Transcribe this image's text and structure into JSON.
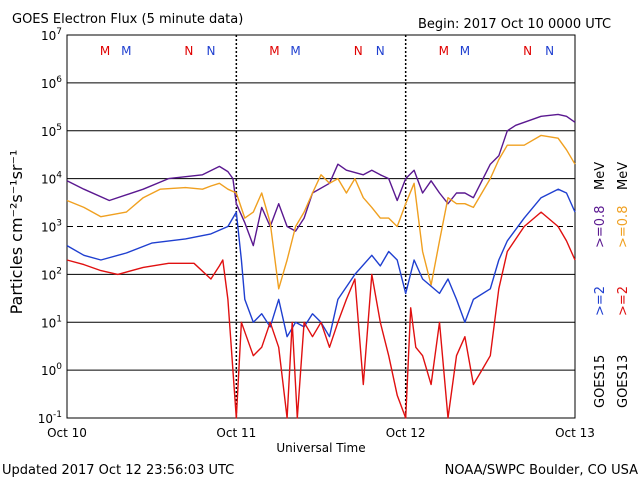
{
  "header": {
    "title": "GOES Electron Flux (5 minute data)",
    "begin": "Begin: 2017 Oct 10 0000 UTC"
  },
  "footer": {
    "updated": "Updated 2017 Oct 12 23:56:03 UTC",
    "credit": "NOAA/SWPC Boulder, CO USA"
  },
  "right_labels": {
    "goes15": "GOES15",
    "goes13": "GOES13",
    "g15_ge2": ">=2",
    "g13_ge2": ">=2",
    "g15_ge08": ">=0.8",
    "g13_ge08": ">=0.8",
    "mev": "MeV"
  },
  "markers": [
    {
      "label": "M",
      "day": 0.225,
      "color": "#e00000"
    },
    {
      "label": "M",
      "day": 0.35,
      "color": "#1f3fd0"
    },
    {
      "label": "N",
      "day": 0.72,
      "color": "#e00000"
    },
    {
      "label": "N",
      "day": 0.85,
      "color": "#1f3fd0"
    },
    {
      "label": "M",
      "day": 1.225,
      "color": "#e00000"
    },
    {
      "label": "M",
      "day": 1.35,
      "color": "#1f3fd0"
    },
    {
      "label": "N",
      "day": 1.72,
      "color": "#e00000"
    },
    {
      "label": "N",
      "day": 1.85,
      "color": "#1f3fd0"
    },
    {
      "label": "M",
      "day": 2.225,
      "color": "#e00000"
    },
    {
      "label": "M",
      "day": 2.35,
      "color": "#1f3fd0"
    },
    {
      "label": "N",
      "day": 2.72,
      "color": "#e00000"
    },
    {
      "label": "N",
      "day": 2.85,
      "color": "#1f3fd0"
    }
  ],
  "chart_data": {
    "type": "line",
    "title": "GOES Electron Flux (5 minute data)",
    "xlabel": "Universal Time",
    "ylabel": "Particles cm⁻²s⁻¹sr⁻¹",
    "x_unit": "days since 2017 Oct 10 0000 UTC",
    "xlim": [
      0,
      3
    ],
    "ylim": [
      0.1,
      10000000
    ],
    "yscale": "log",
    "x_ticks": [
      {
        "value": 0,
        "label": "Oct 10"
      },
      {
        "value": 1,
        "label": "Oct 11"
      },
      {
        "value": 2,
        "label": "Oct 12"
      },
      {
        "value": 3,
        "label": "Oct 13"
      }
    ],
    "y_ticks": [
      {
        "exp": -1,
        "label": "10",
        "sup": "-1"
      },
      {
        "exp": 0,
        "label": "10",
        "sup": "0"
      },
      {
        "exp": 1,
        "label": "10",
        "sup": "1"
      },
      {
        "exp": 2,
        "label": "10",
        "sup": "2"
      },
      {
        "exp": 3,
        "label": "10",
        "sup": "3"
      },
      {
        "exp": 4,
        "label": "10",
        "sup": "4"
      },
      {
        "exp": 5,
        "label": "10",
        "sup": "5"
      },
      {
        "exp": 6,
        "label": "10",
        "sup": "6"
      },
      {
        "exp": 7,
        "label": "10",
        "sup": "7"
      }
    ],
    "grid": true,
    "threshold": 1000,
    "series": [
      {
        "name": "GOES15 >=0.8 MeV",
        "color": "#5a1890",
        "x": [
          0,
          0.1,
          0.25,
          0.45,
          0.6,
          0.8,
          0.9,
          0.95,
          0.98,
          1.0,
          1.05,
          1.1,
          1.15,
          1.2,
          1.25,
          1.3,
          1.35,
          1.4,
          1.45,
          1.55,
          1.6,
          1.65,
          1.75,
          1.8,
          1.85,
          1.9,
          1.95,
          2.0,
          2.05,
          2.1,
          2.15,
          2.2,
          2.25,
          2.3,
          2.35,
          2.4,
          2.5,
          2.55,
          2.6,
          2.65,
          2.7,
          2.8,
          2.9,
          2.95,
          3.0
        ],
        "y": [
          9000,
          6000,
          3500,
          6000,
          10000,
          12000,
          18000,
          14000,
          10000,
          3000,
          1200,
          400,
          2500,
          1000,
          3000,
          1000,
          800,
          1500,
          5000,
          8000,
          20000,
          15000,
          12000,
          15000,
          12000,
          10000,
          3500,
          10000,
          15000,
          5000,
          9000,
          5000,
          3000,
          5000,
          5000,
          4000,
          20000,
          30000,
          100000,
          130000,
          150000,
          200000,
          220000,
          200000,
          150000
        ]
      },
      {
        "name": "GOES13 >=0.8 MeV",
        "color": "#f0a020",
        "x": [
          0,
          0.1,
          0.2,
          0.35,
          0.45,
          0.55,
          0.7,
          0.8,
          0.85,
          0.9,
          0.95,
          1.0,
          1.05,
          1.1,
          1.15,
          1.2,
          1.25,
          1.3,
          1.35,
          1.4,
          1.45,
          1.5,
          1.55,
          1.6,
          1.65,
          1.7,
          1.75,
          1.8,
          1.85,
          1.9,
          1.95,
          2.0,
          2.05,
          2.1,
          2.15,
          2.2,
          2.25,
          2.3,
          2.35,
          2.4,
          2.5,
          2.55,
          2.6,
          2.7,
          2.8,
          2.9,
          2.95,
          3.0
        ],
        "y": [
          3500,
          2500,
          1600,
          2000,
          4000,
          6000,
          6500,
          6000,
          7000,
          8000,
          6000,
          5000,
          1500,
          2000,
          5000,
          1200,
          50,
          200,
          1000,
          2000,
          5000,
          12000,
          8000,
          10000,
          5000,
          10000,
          4000,
          2500,
          1500,
          1500,
          1000,
          3000,
          8000,
          300,
          60,
          500,
          4000,
          3000,
          3000,
          2500,
          10000,
          25000,
          50000,
          50000,
          80000,
          70000,
          40000,
          20000
        ]
      },
      {
        "name": "GOES15 >=2 MeV",
        "color": "#1f3fd0",
        "x": [
          0,
          0.1,
          0.2,
          0.35,
          0.5,
          0.7,
          0.85,
          0.95,
          1.0,
          1.03,
          1.05,
          1.1,
          1.15,
          1.2,
          1.25,
          1.3,
          1.35,
          1.4,
          1.45,
          1.5,
          1.55,
          1.6,
          1.7,
          1.8,
          1.85,
          1.9,
          1.95,
          2.0,
          2.05,
          2.1,
          2.2,
          2.25,
          2.3,
          2.35,
          2.4,
          2.5,
          2.55,
          2.6,
          2.7,
          2.8,
          2.9,
          2.95,
          3.0
        ],
        "y": [
          400,
          250,
          200,
          280,
          450,
          550,
          700,
          1000,
          2000,
          200,
          30,
          10,
          15,
          8,
          30,
          5,
          10,
          8,
          15,
          10,
          5,
          30,
          100,
          250,
          150,
          300,
          200,
          40,
          200,
          80,
          40,
          80,
          30,
          10,
          30,
          50,
          200,
          500,
          1500,
          4000,
          6000,
          5000,
          2000
        ]
      },
      {
        "name": "GOES13 >=2 MeV",
        "color": "#e01010",
        "x": [
          0,
          0.1,
          0.2,
          0.3,
          0.45,
          0.6,
          0.75,
          0.85,
          0.9,
          0.92,
          0.95,
          1.0,
          1.03,
          1.06,
          1.1,
          1.15,
          1.2,
          1.25,
          1.3,
          1.33,
          1.36,
          1.4,
          1.45,
          1.5,
          1.55,
          1.6,
          1.65,
          1.7,
          1.75,
          1.8,
          1.85,
          1.9,
          1.95,
          2.0,
          2.03,
          2.06,
          2.1,
          2.15,
          2.2,
          2.25,
          2.3,
          2.35,
          2.4,
          2.45,
          2.5,
          2.55,
          2.6,
          2.7,
          2.8,
          2.9,
          2.95,
          3.0
        ],
        "y": [
          200,
          160,
          120,
          100,
          140,
          170,
          170,
          80,
          150,
          200,
          30,
          0.1,
          10,
          5,
          2,
          3,
          10,
          3,
          0.1,
          10,
          0.1,
          10,
          5,
          10,
          3,
          10,
          30,
          80,
          0.5,
          100,
          10,
          2,
          0.3,
          0.1,
          20,
          3,
          2,
          0.5,
          10,
          0.1,
          2,
          5,
          0.5,
          1,
          2,
          50,
          300,
          1000,
          2000,
          1000,
          500,
          200
        ]
      }
    ]
  }
}
